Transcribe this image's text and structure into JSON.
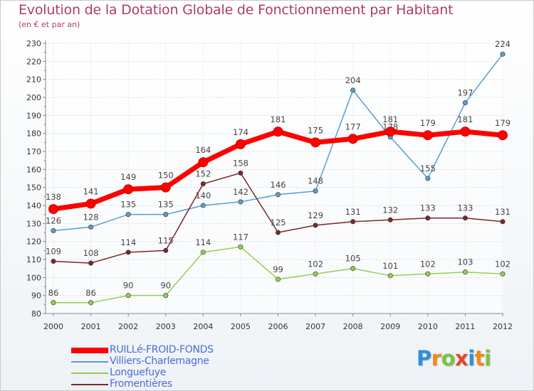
{
  "chart_data": {
    "type": "line",
    "title": "Evolution de la Dotation Globale de Fonctionnement par Habitant",
    "subtitle": "(en € et par an)",
    "xlabel": "",
    "ylabel": "",
    "ylim": [
      80,
      230
    ],
    "ytick_step": 10,
    "grid": true,
    "legend_position": "bottom-left",
    "x": [
      "2000",
      "2001",
      "2002",
      "2003",
      "2004",
      "2005",
      "2006",
      "2007",
      "2008",
      "2009",
      "2010",
      "2011",
      "2012"
    ],
    "series": [
      {
        "name": "Villiers-Charlemagne",
        "color": "#5b9bd5",
        "values": [
          126,
          128,
          135,
          135,
          140,
          142,
          146,
          148,
          204,
          178,
          155,
          197,
          224
        ]
      },
      {
        "name": "Longuefuye",
        "color": "#92d050",
        "values": [
          86,
          86,
          90,
          90,
          114,
          117,
          99,
          102,
          105,
          101,
          102,
          103,
          102
        ]
      },
      {
        "name": "Fromentières",
        "color": "#7b2727",
        "values": [
          109,
          108,
          114,
          115,
          152,
          158,
          125,
          129,
          131,
          132,
          133,
          133,
          131
        ]
      },
      {
        "name": "RUILLé-FROID-FONDS",
        "color": "#ff0000",
        "values": [
          138,
          141,
          149,
          150,
          164,
          174,
          181,
          175,
          177,
          181,
          179,
          181,
          179
        ]
      }
    ],
    "legend_order": [
      "RUILLé-FROID-FONDS",
      "Villiers-Charlemagne",
      "Longuefuye",
      "Fromentières"
    ]
  },
  "logo": {
    "letters": [
      {
        "char": "P",
        "color": "#2f8fd8"
      },
      {
        "char": "r",
        "color": "#f08a1c"
      },
      {
        "char": "o",
        "color": "#7cc242"
      },
      {
        "char": "x",
        "color": "#e8432a"
      },
      {
        "char": "i",
        "color": "#2f8fd8"
      },
      {
        "char": "t",
        "color": "#f08a1c"
      },
      {
        "char": "i",
        "color": "#7cc242"
      }
    ]
  }
}
